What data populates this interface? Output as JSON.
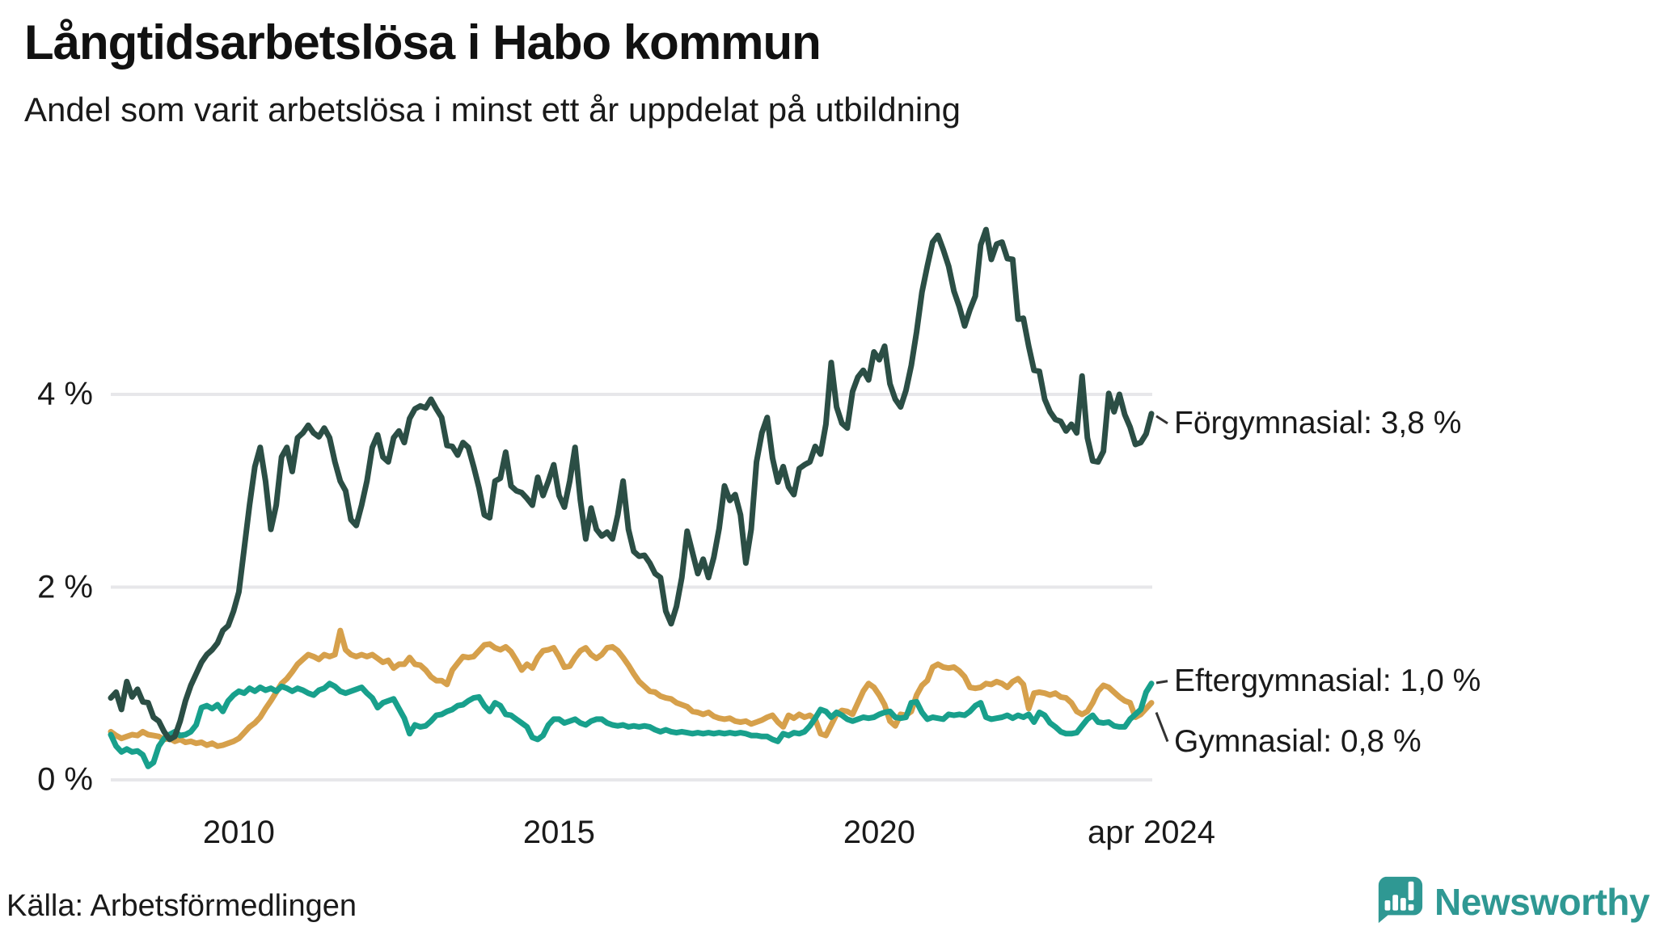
{
  "header": {
    "title": "Långtidsarbetslösa i Habo kommun",
    "subtitle": "Andel som varit arbetslösa i minst ett år uppdelat på utbildning"
  },
  "footer": {
    "source": "Källa: Arbetsförmedlingen",
    "brand": "Newsworthy",
    "brand_color": "#2f9893"
  },
  "chart_data": {
    "type": "line",
    "title": "Långtidsarbetslösa i Habo kommun",
    "subtitle": "Andel som varit arbetslösa i minst ett år uppdelat på utbildning",
    "unit": "%",
    "start_year": 2008,
    "step_months": 1,
    "end_label_note": "series end at apr 2024",
    "x_axis": {
      "ticks": [
        {
          "label": "2010",
          "t": 2010.0
        },
        {
          "label": "2015",
          "t": 2015.0
        },
        {
          "label": "2020",
          "t": 2020.0
        },
        {
          "label": "apr 2024",
          "t": 2024.25
        }
      ],
      "range": [
        2008.0,
        2024.25
      ]
    },
    "y_axis": {
      "ticks": [
        {
          "label": "0 %",
          "v": 0
        },
        {
          "label": "2 %",
          "v": 2
        },
        {
          "label": "4 %",
          "v": 4
        }
      ],
      "range": [
        0,
        5.9
      ],
      "grid": true,
      "grid_color": "#e7e7ea"
    },
    "legend_position": "right-annotations",
    "series": [
      {
        "name": "Gymnasial",
        "color": "#d6a04b",
        "end_label": "Gymnasial: 0,8 %",
        "end_value": 0.8,
        "values": [
          0.5,
          0.46,
          0.43,
          0.45,
          0.47,
          0.46,
          0.5,
          0.47,
          0.46,
          0.45,
          0.42,
          0.43,
          0.4,
          0.42,
          0.39,
          0.4,
          0.38,
          0.39,
          0.36,
          0.38,
          0.35,
          0.36,
          0.38,
          0.4,
          0.43,
          0.49,
          0.55,
          0.59,
          0.65,
          0.74,
          0.82,
          0.91,
          1.0,
          1.05,
          1.12,
          1.2,
          1.25,
          1.3,
          1.28,
          1.25,
          1.3,
          1.28,
          1.3,
          1.55,
          1.35,
          1.3,
          1.28,
          1.3,
          1.28,
          1.3,
          1.26,
          1.22,
          1.24,
          1.16,
          1.2,
          1.2,
          1.27,
          1.2,
          1.19,
          1.14,
          1.07,
          1.03,
          1.03,
          0.99,
          1.14,
          1.21,
          1.28,
          1.27,
          1.28,
          1.34,
          1.4,
          1.41,
          1.37,
          1.35,
          1.38,
          1.33,
          1.24,
          1.14,
          1.2,
          1.16,
          1.27,
          1.34,
          1.35,
          1.37,
          1.28,
          1.17,
          1.18,
          1.27,
          1.34,
          1.37,
          1.3,
          1.26,
          1.3,
          1.37,
          1.38,
          1.34,
          1.27,
          1.19,
          1.1,
          1.02,
          0.97,
          0.92,
          0.91,
          0.87,
          0.85,
          0.84,
          0.8,
          0.78,
          0.76,
          0.71,
          0.7,
          0.68,
          0.7,
          0.66,
          0.64,
          0.63,
          0.64,
          0.61,
          0.6,
          0.61,
          0.58,
          0.6,
          0.62,
          0.65,
          0.67,
          0.6,
          0.55,
          0.67,
          0.64,
          0.68,
          0.65,
          0.67,
          0.63,
          0.48,
          0.46,
          0.57,
          0.68,
          0.72,
          0.71,
          0.68,
          0.8,
          0.92,
          1.0,
          0.96,
          0.88,
          0.78,
          0.61,
          0.56,
          0.68,
          0.67,
          0.71,
          0.88,
          0.98,
          1.03,
          1.17,
          1.2,
          1.17,
          1.16,
          1.17,
          1.13,
          1.07,
          0.96,
          0.95,
          0.96,
          1.0,
          0.99,
          1.02,
          1.0,
          0.96,
          1.02,
          1.05,
          0.99,
          0.74,
          0.9,
          0.91,
          0.9,
          0.88,
          0.9,
          0.86,
          0.85,
          0.8,
          0.71,
          0.68,
          0.71,
          0.8,
          0.92,
          0.98,
          0.96,
          0.91,
          0.86,
          0.82,
          0.8,
          0.65,
          0.68,
          0.74,
          0.8
        ]
      },
      {
        "name": "Eftergymnasial",
        "color": "#18a08c",
        "end_label": "Eftergymnasial: 1,0 %",
        "end_value": 1.0,
        "values": [
          0.47,
          0.35,
          0.29,
          0.32,
          0.29,
          0.3,
          0.26,
          0.14,
          0.18,
          0.35,
          0.43,
          0.47,
          0.5,
          0.46,
          0.47,
          0.5,
          0.57,
          0.75,
          0.77,
          0.74,
          0.78,
          0.71,
          0.82,
          0.88,
          0.92,
          0.9,
          0.95,
          0.92,
          0.96,
          0.93,
          0.95,
          0.92,
          0.97,
          0.95,
          0.92,
          0.95,
          0.93,
          0.9,
          0.88,
          0.93,
          0.95,
          1.0,
          0.97,
          0.92,
          0.9,
          0.92,
          0.94,
          0.96,
          0.9,
          0.85,
          0.75,
          0.8,
          0.82,
          0.84,
          0.74,
          0.64,
          0.48,
          0.57,
          0.55,
          0.56,
          0.61,
          0.67,
          0.68,
          0.71,
          0.73,
          0.77,
          0.78,
          0.82,
          0.85,
          0.86,
          0.77,
          0.71,
          0.8,
          0.77,
          0.68,
          0.67,
          0.63,
          0.59,
          0.55,
          0.44,
          0.42,
          0.46,
          0.57,
          0.63,
          0.63,
          0.59,
          0.61,
          0.63,
          0.59,
          0.57,
          0.61,
          0.63,
          0.63,
          0.59,
          0.57,
          0.56,
          0.57,
          0.55,
          0.56,
          0.55,
          0.56,
          0.55,
          0.52,
          0.5,
          0.52,
          0.5,
          0.49,
          0.5,
          0.49,
          0.48,
          0.49,
          0.48,
          0.49,
          0.48,
          0.49,
          0.48,
          0.49,
          0.48,
          0.49,
          0.48,
          0.46,
          0.46,
          0.45,
          0.45,
          0.42,
          0.4,
          0.48,
          0.46,
          0.49,
          0.48,
          0.5,
          0.56,
          0.64,
          0.73,
          0.71,
          0.65,
          0.7,
          0.67,
          0.63,
          0.61,
          0.63,
          0.65,
          0.64,
          0.65,
          0.68,
          0.7,
          0.71,
          0.65,
          0.64,
          0.65,
          0.8,
          0.81,
          0.7,
          0.63,
          0.65,
          0.64,
          0.63,
          0.68,
          0.67,
          0.68,
          0.67,
          0.71,
          0.77,
          0.8,
          0.65,
          0.63,
          0.64,
          0.65,
          0.67,
          0.64,
          0.67,
          0.65,
          0.68,
          0.6,
          0.7,
          0.67,
          0.59,
          0.55,
          0.5,
          0.48,
          0.48,
          0.49,
          0.56,
          0.63,
          0.67,
          0.6,
          0.59,
          0.6,
          0.56,
          0.55,
          0.55,
          0.63,
          0.68,
          0.73,
          0.91,
          1.0
        ]
      },
      {
        "name": "Förgymnasial",
        "color": "#2b4e45",
        "end_label": "Förgymnasial: 3,8 %",
        "end_value": 3.8,
        "values": [
          0.85,
          0.91,
          0.73,
          1.02,
          0.86,
          0.94,
          0.81,
          0.8,
          0.65,
          0.61,
          0.5,
          0.42,
          0.45,
          0.61,
          0.82,
          0.98,
          1.1,
          1.22,
          1.3,
          1.35,
          1.42,
          1.55,
          1.6,
          1.75,
          1.95,
          2.4,
          2.85,
          3.25,
          3.45,
          3.1,
          2.6,
          2.85,
          3.35,
          3.45,
          3.2,
          3.55,
          3.6,
          3.68,
          3.6,
          3.56,
          3.65,
          3.55,
          3.3,
          3.1,
          3.0,
          2.7,
          2.64,
          2.85,
          3.1,
          3.45,
          3.58,
          3.35,
          3.3,
          3.55,
          3.62,
          3.5,
          3.75,
          3.85,
          3.88,
          3.86,
          3.95,
          3.85,
          3.76,
          3.47,
          3.46,
          3.37,
          3.5,
          3.45,
          3.25,
          3.03,
          2.75,
          2.72,
          3.1,
          3.13,
          3.4,
          3.05,
          3.0,
          2.98,
          2.92,
          2.85,
          3.14,
          2.95,
          3.1,
          3.27,
          2.95,
          2.83,
          3.1,
          3.45,
          2.9,
          2.5,
          2.82,
          2.6,
          2.53,
          2.57,
          2.5,
          2.75,
          3.1,
          2.6,
          2.37,
          2.32,
          2.33,
          2.25,
          2.14,
          2.1,
          1.75,
          1.62,
          1.8,
          2.1,
          2.58,
          2.36,
          2.14,
          2.29,
          2.1,
          2.31,
          2.61,
          3.05,
          2.9,
          2.96,
          2.75,
          2.25,
          2.6,
          3.3,
          3.6,
          3.76,
          3.34,
          3.09,
          3.25,
          3.04,
          2.96,
          3.23,
          3.27,
          3.3,
          3.46,
          3.38,
          3.69,
          4.33,
          3.87,
          3.7,
          3.65,
          4.03,
          4.18,
          4.25,
          4.15,
          4.44,
          4.36,
          4.5,
          4.11,
          3.95,
          3.87,
          4.04,
          4.3,
          4.65,
          5.06,
          5.33,
          5.58,
          5.65,
          5.5,
          5.33,
          5.07,
          4.91,
          4.71,
          4.88,
          5.02,
          5.55,
          5.71,
          5.4,
          5.56,
          5.58,
          5.41,
          5.4,
          4.78,
          4.79,
          4.5,
          4.25,
          4.24,
          3.95,
          3.82,
          3.74,
          3.72,
          3.62,
          3.69,
          3.6,
          4.19,
          3.55,
          3.31,
          3.3,
          3.41,
          4.01,
          3.82,
          4.0,
          3.79,
          3.66,
          3.48,
          3.5,
          3.59,
          3.8
        ]
      }
    ]
  }
}
